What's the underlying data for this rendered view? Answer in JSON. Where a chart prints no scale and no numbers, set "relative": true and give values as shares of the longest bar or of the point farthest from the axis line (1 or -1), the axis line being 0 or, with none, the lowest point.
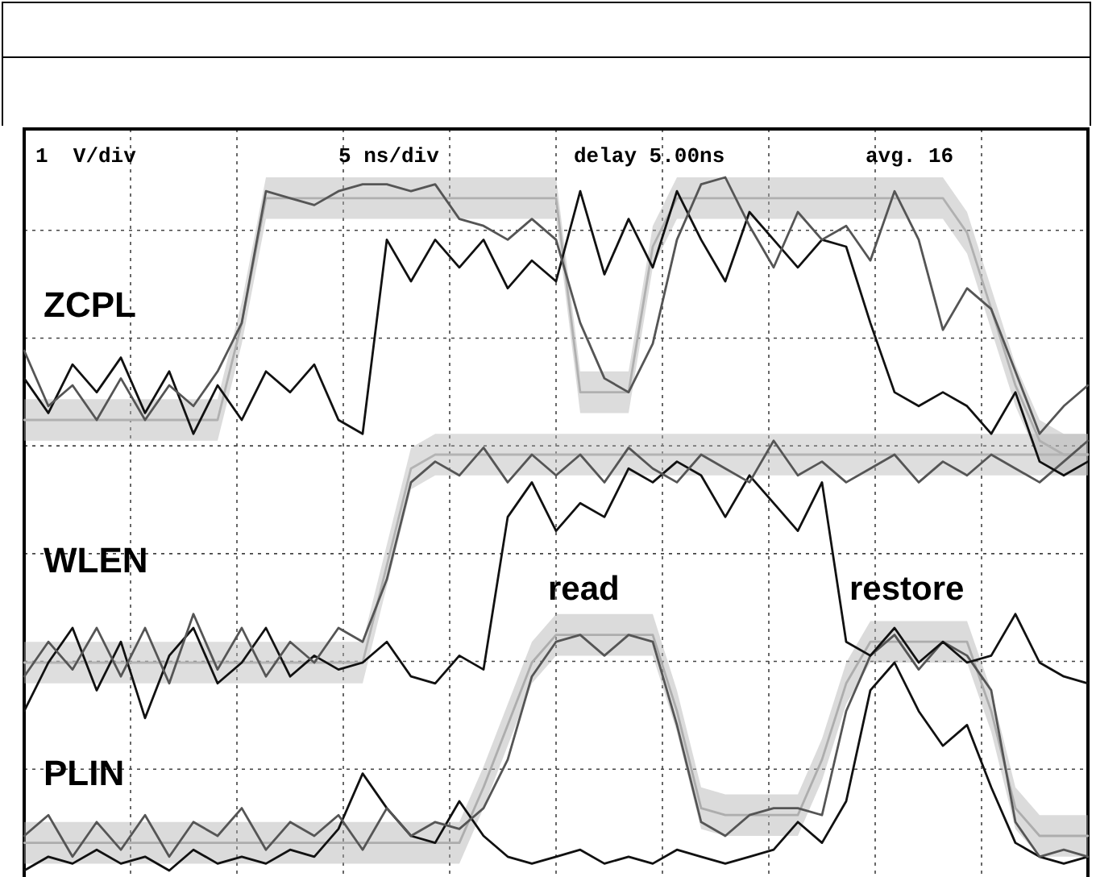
{
  "chart_data": {
    "type": "line",
    "relative": true,
    "grid": true,
    "legend": false,
    "marker": "none",
    "line_style": "solid",
    "annotations": [
      "1  V/div",
      "5 ns/div",
      "delay 5.00ns",
      "avg. 16",
      "read",
      "restore"
    ],
    "categories": [
      null,
      null,
      null,
      null,
      null,
      null,
      null,
      null,
      null,
      null,
      null,
      null,
      null,
      null,
      null,
      null,
      null,
      null,
      null,
      null,
      null,
      null,
      null,
      null,
      null,
      null,
      null,
      null,
      null,
      null,
      null,
      null,
      null,
      null,
      null,
      null,
      null,
      null,
      null,
      null,
      null,
      null,
      null,
      null,
      null
    ],
    "series": [
      {
        "name": "ZCPL",
        "color": "#b0b0b0",
        "values": [
          0.65,
          0.65,
          0.65,
          0.65,
          0.65,
          0.65,
          0.65,
          0.65,
          0.65,
          0.79,
          0.97,
          0.97,
          0.97,
          0.97,
          0.97,
          0.97,
          0.97,
          0.97,
          0.97,
          0.97,
          0.97,
          0.97,
          0.97,
          0.69,
          0.69,
          0.69,
          0.9,
          0.97,
          0.97,
          0.97,
          0.97,
          0.97,
          0.97,
          0.97,
          0.97,
          0.97,
          0.97,
          0.97,
          0.97,
          0.92,
          0.81,
          0.7,
          0.62,
          0.6,
          0.6
        ],
        "upper": [
          0.68,
          0.68,
          0.68,
          0.68,
          0.68,
          0.68,
          0.68,
          0.68,
          0.68,
          0.82,
          1.0,
          1.0,
          1.0,
          1.0,
          1.0,
          1.0,
          1.0,
          1.0,
          1.0,
          1.0,
          1.0,
          1.0,
          1.0,
          0.72,
          0.72,
          0.72,
          0.93,
          1.0,
          1.0,
          1.0,
          1.0,
          1.0,
          1.0,
          1.0,
          1.0,
          1.0,
          1.0,
          1.0,
          1.0,
          0.95,
          0.84,
          0.73,
          0.65,
          0.63,
          0.63
        ],
        "lower": [
          0.62,
          0.62,
          0.62,
          0.62,
          0.62,
          0.62,
          0.62,
          0.62,
          0.62,
          0.76,
          0.94,
          0.94,
          0.94,
          0.94,
          0.94,
          0.94,
          0.94,
          0.94,
          0.94,
          0.94,
          0.94,
          0.94,
          0.94,
          0.66,
          0.66,
          0.66,
          0.87,
          0.94,
          0.94,
          0.94,
          0.94,
          0.94,
          0.94,
          0.94,
          0.94,
          0.94,
          0.94,
          0.94,
          0.94,
          0.89,
          0.78,
          0.67,
          0.59,
          0.57,
          0.57
        ]
      },
      {
        "color": "#555555",
        "values": [
          0.75,
          0.67,
          0.7,
          0.65,
          0.71,
          0.65,
          0.7,
          0.67,
          0.72,
          0.79,
          0.98,
          0.97,
          0.96,
          0.98,
          0.99,
          0.99,
          0.98,
          0.99,
          0.94,
          0.93,
          0.91,
          0.94,
          0.91,
          0.79,
          0.71,
          0.69,
          0.76,
          0.91,
          0.99,
          1.0,
          0.93,
          0.87,
          0.95,
          0.91,
          0.93,
          0.88,
          0.98,
          0.91,
          0.78,
          0.84,
          0.81,
          0.72,
          0.63,
          0.67,
          0.7
        ]
      },
      {
        "color": "#111111",
        "values": [
          0.71,
          0.66,
          0.73,
          0.69,
          0.74,
          0.66,
          0.72,
          0.63,
          0.7,
          0.65,
          0.72,
          0.69,
          0.73,
          0.65,
          0.63,
          0.91,
          0.85,
          0.91,
          0.87,
          0.91,
          0.84,
          0.88,
          0.85,
          0.98,
          0.86,
          0.94,
          0.87,
          0.98,
          0.91,
          0.85,
          0.95,
          0.91,
          0.87,
          0.91,
          0.9,
          0.79,
          0.69,
          0.67,
          0.69,
          0.67,
          0.63,
          0.69,
          0.59,
          0.57,
          0.59
        ]
      },
      {
        "name": "WLEN",
        "color": "#b3b3b3",
        "values": [
          0.3,
          0.3,
          0.3,
          0.3,
          0.3,
          0.3,
          0.3,
          0.3,
          0.3,
          0.3,
          0.3,
          0.3,
          0.3,
          0.3,
          0.3,
          0.44,
          0.58,
          0.6,
          0.6,
          0.6,
          0.6,
          0.6,
          0.6,
          0.6,
          0.6,
          0.6,
          0.6,
          0.6,
          0.6,
          0.6,
          0.6,
          0.6,
          0.6,
          0.6,
          0.6,
          0.6,
          0.6,
          0.6,
          0.6,
          0.6,
          0.6,
          0.6,
          0.6,
          0.6,
          0.6
        ],
        "upper": [
          0.33,
          0.33,
          0.33,
          0.33,
          0.33,
          0.33,
          0.33,
          0.33,
          0.33,
          0.33,
          0.33,
          0.33,
          0.33,
          0.33,
          0.33,
          0.47,
          0.61,
          0.63,
          0.63,
          0.63,
          0.63,
          0.63,
          0.63,
          0.63,
          0.63,
          0.63,
          0.63,
          0.63,
          0.63,
          0.63,
          0.63,
          0.63,
          0.63,
          0.63,
          0.63,
          0.63,
          0.63,
          0.63,
          0.63,
          0.63,
          0.63,
          0.63,
          0.63,
          0.63,
          0.63
        ],
        "lower": [
          0.27,
          0.27,
          0.27,
          0.27,
          0.27,
          0.27,
          0.27,
          0.27,
          0.27,
          0.27,
          0.27,
          0.27,
          0.27,
          0.27,
          0.27,
          0.41,
          0.55,
          0.57,
          0.57,
          0.57,
          0.57,
          0.57,
          0.57,
          0.57,
          0.57,
          0.57,
          0.57,
          0.57,
          0.57,
          0.57,
          0.57,
          0.57,
          0.57,
          0.57,
          0.57,
          0.57,
          0.57,
          0.57,
          0.57,
          0.57,
          0.57,
          0.57,
          0.57,
          0.57,
          0.57
        ]
      },
      {
        "color": "#555555",
        "values": [
          0.28,
          0.33,
          0.29,
          0.35,
          0.28,
          0.35,
          0.27,
          0.37,
          0.29,
          0.35,
          0.28,
          0.33,
          0.3,
          0.35,
          0.33,
          0.42,
          0.56,
          0.59,
          0.57,
          0.61,
          0.56,
          0.6,
          0.57,
          0.6,
          0.56,
          0.61,
          0.58,
          0.56,
          0.6,
          0.58,
          0.56,
          0.62,
          0.57,
          0.59,
          0.56,
          0.58,
          0.6,
          0.56,
          0.59,
          0.57,
          0.6,
          0.58,
          0.56,
          0.59,
          0.62
        ]
      },
      {
        "color": "#111111",
        "values": [
          0.23,
          0.3,
          0.35,
          0.26,
          0.33,
          0.22,
          0.31,
          0.35,
          0.27,
          0.3,
          0.35,
          0.28,
          0.31,
          0.29,
          0.3,
          0.33,
          0.28,
          0.27,
          0.31,
          0.29,
          0.51,
          0.56,
          0.49,
          0.53,
          0.51,
          0.58,
          0.56,
          0.59,
          0.57,
          0.51,
          0.57,
          0.53,
          0.49,
          0.56,
          0.33,
          0.31,
          0.35,
          0.3,
          0.33,
          0.3,
          0.31,
          0.37,
          0.3,
          0.28,
          0.27
        ]
      },
      {
        "name": "PLIN",
        "color": "#adadad",
        "values": [
          0.04,
          0.04,
          0.04,
          0.04,
          0.04,
          0.04,
          0.04,
          0.04,
          0.04,
          0.04,
          0.04,
          0.04,
          0.04,
          0.04,
          0.04,
          0.04,
          0.04,
          0.04,
          0.04,
          0.12,
          0.21,
          0.3,
          0.34,
          0.34,
          0.34,
          0.34,
          0.34,
          0.23,
          0.09,
          0.08,
          0.08,
          0.08,
          0.08,
          0.16,
          0.27,
          0.33,
          0.33,
          0.33,
          0.33,
          0.33,
          0.23,
          0.09,
          0.05,
          0.05,
          0.05
        ],
        "upper": [
          0.07,
          0.07,
          0.07,
          0.07,
          0.07,
          0.07,
          0.07,
          0.07,
          0.07,
          0.07,
          0.07,
          0.07,
          0.07,
          0.07,
          0.07,
          0.07,
          0.07,
          0.07,
          0.07,
          0.15,
          0.24,
          0.33,
          0.37,
          0.37,
          0.37,
          0.37,
          0.37,
          0.26,
          0.12,
          0.11,
          0.11,
          0.11,
          0.11,
          0.19,
          0.3,
          0.36,
          0.36,
          0.36,
          0.36,
          0.36,
          0.26,
          0.12,
          0.08,
          0.08,
          0.08
        ],
        "lower": [
          0.01,
          0.01,
          0.01,
          0.01,
          0.01,
          0.01,
          0.01,
          0.01,
          0.01,
          0.01,
          0.01,
          0.01,
          0.01,
          0.01,
          0.01,
          0.01,
          0.01,
          0.01,
          0.01,
          0.09,
          0.18,
          0.27,
          0.31,
          0.31,
          0.31,
          0.31,
          0.31,
          0.2,
          0.06,
          0.05,
          0.05,
          0.05,
          0.05,
          0.13,
          0.24,
          0.3,
          0.3,
          0.3,
          0.3,
          0.3,
          0.2,
          0.06,
          0.02,
          0.02,
          0.02
        ]
      },
      {
        "color": "#555555",
        "values": [
          0.05,
          0.08,
          0.02,
          0.07,
          0.03,
          0.08,
          0.02,
          0.07,
          0.05,
          0.09,
          0.03,
          0.07,
          0.05,
          0.08,
          0.03,
          0.09,
          0.05,
          0.07,
          0.06,
          0.09,
          0.16,
          0.28,
          0.33,
          0.34,
          0.31,
          0.34,
          0.33,
          0.21,
          0.07,
          0.05,
          0.08,
          0.09,
          0.09,
          0.08,
          0.23,
          0.31,
          0.34,
          0.29,
          0.33,
          0.31,
          0.26,
          0.07,
          0.02,
          0.03,
          0.02
        ]
      },
      {
        "color": "#111111",
        "values": [
          0.0,
          0.02,
          0.01,
          0.03,
          0.01,
          0.02,
          0.0,
          0.03,
          0.01,
          0.02,
          0.01,
          0.03,
          0.02,
          0.06,
          0.14,
          0.09,
          0.05,
          0.04,
          0.1,
          0.05,
          0.02,
          0.01,
          0.02,
          0.03,
          0.01,
          0.02,
          0.01,
          0.03,
          0.02,
          0.01,
          0.02,
          0.03,
          0.07,
          0.04,
          0.1,
          0.26,
          0.3,
          0.23,
          0.18,
          0.21,
          0.12,
          0.04,
          0.02,
          0.01,
          0.02
        ]
      }
    ]
  }
}
